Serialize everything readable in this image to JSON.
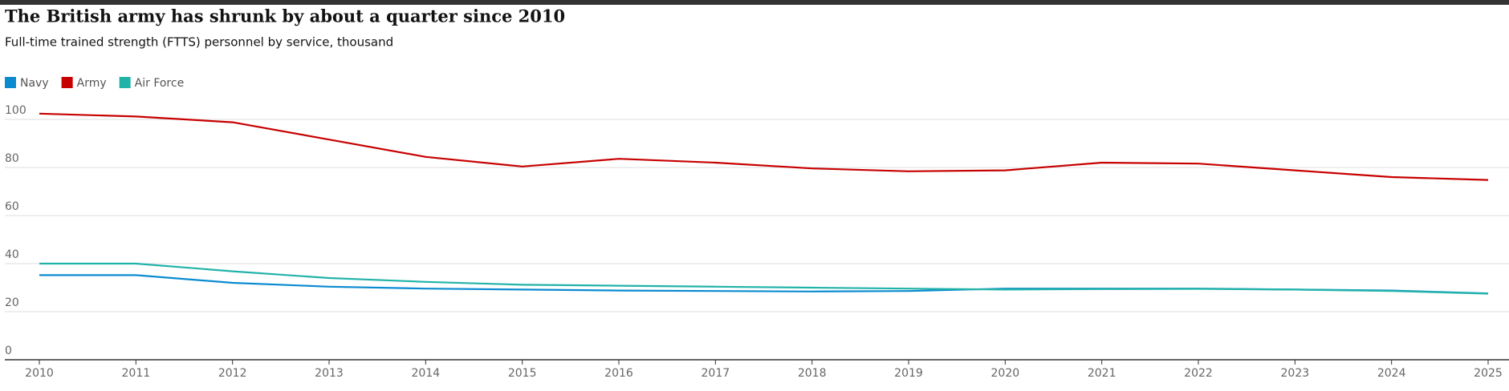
{
  "chart_data": {
    "type": "line",
    "title": "The British army has shrunk by about a quarter since 2010",
    "subtitle": "Full-time trained strength (FTTS) personnel by service, thousand",
    "categories": [
      "2010",
      "2011",
      "2012",
      "2013",
      "2014",
      "2015",
      "2016",
      "2017",
      "2018",
      "2019",
      "2020",
      "2021",
      "2022",
      "2023",
      "2024",
      "2025"
    ],
    "series": [
      {
        "name": "Navy",
        "color": "#0a8bd0",
        "values": [
          35.2,
          35.2,
          32,
          30.4,
          29.6,
          29.2,
          28.8,
          28.6,
          28.4,
          28.6,
          29.6,
          29.6,
          29.6,
          29.2,
          28.8,
          27.6
        ]
      },
      {
        "name": "Army",
        "color": "#c70000",
        "values": [
          102.4,
          101.2,
          98.8,
          91.6,
          84.4,
          80.4,
          83.6,
          82,
          79.6,
          78.4,
          78.8,
          82,
          81.6,
          78.8,
          76,
          74.8
        ]
      },
      {
        "name": "Air Force",
        "color": "#22b3a8",
        "values": [
          40,
          40,
          36.8,
          34,
          32.4,
          31.2,
          30.8,
          30.4,
          30,
          29.6,
          29.2,
          29.4,
          29.5,
          29.2,
          28.6,
          27.5
        ]
      }
    ],
    "ylim": [
      0,
      100
    ],
    "yticks": [
      0,
      20,
      40,
      60,
      80,
      100
    ],
    "grid": true
  }
}
